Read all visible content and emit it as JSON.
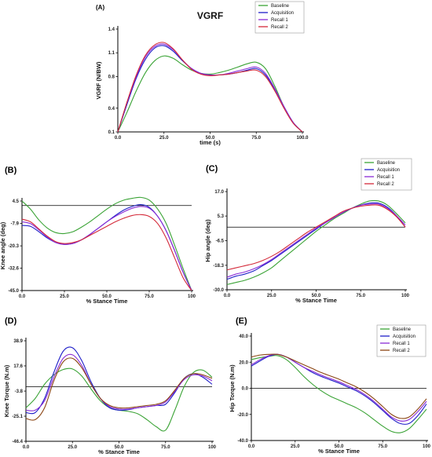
{
  "colors": {
    "baseline": "#3aa335",
    "acquisition": "#1e1ec8",
    "recall1": "#8a2bd6",
    "recall2": "#d42a3a",
    "recall2_alt": "#8b4513",
    "axis": "#000000",
    "zero_line": "#000000"
  },
  "chart_data": [
    {
      "id": "A",
      "panel_label": "(A)",
      "type": "line",
      "title": "VGRF",
      "xlabel": "time (s)",
      "ylabel": "VGRF (N/BW)",
      "xlim": [
        0,
        100
      ],
      "ylim": [
        0.1,
        1.4
      ],
      "xticks": [
        "0.0",
        "25.0",
        "50.0",
        "75.0",
        "100.0"
      ],
      "xtick_values": [
        0,
        25,
        50,
        75,
        100
      ],
      "yticks": [
        "0.1",
        "0.4",
        "0.8",
        "1.1",
        "1.4"
      ],
      "ytick_values": [
        0.1,
        0.4,
        0.8,
        1.1,
        1.4
      ],
      "legend": [
        "Baseline",
        "Acquisition",
        "Recall 1",
        "Recall 2"
      ],
      "legend_position": "top-right",
      "reference_line": null,
      "x": [
        0,
        5,
        10,
        15,
        20,
        25,
        30,
        35,
        40,
        45,
        50,
        55,
        60,
        65,
        70,
        75,
        80,
        85,
        90,
        95,
        100
      ],
      "series": [
        {
          "name": "Baseline",
          "color_key": "baseline",
          "values": [
            0.1,
            0.35,
            0.62,
            0.85,
            1.0,
            1.06,
            1.03,
            0.95,
            0.88,
            0.84,
            0.83,
            0.85,
            0.88,
            0.92,
            0.96,
            0.98,
            0.9,
            0.68,
            0.42,
            0.22,
            0.1
          ]
        },
        {
          "name": "Acquisition",
          "color_key": "acquisition",
          "values": [
            0.1,
            0.45,
            0.78,
            1.02,
            1.16,
            1.19,
            1.12,
            1.0,
            0.9,
            0.84,
            0.82,
            0.82,
            0.83,
            0.85,
            0.88,
            0.9,
            0.82,
            0.64,
            0.42,
            0.22,
            0.1
          ]
        },
        {
          "name": "Recall 1",
          "color_key": "recall1",
          "values": [
            0.1,
            0.47,
            0.8,
            1.05,
            1.18,
            1.21,
            1.14,
            1.01,
            0.9,
            0.84,
            0.82,
            0.82,
            0.84,
            0.87,
            0.9,
            0.92,
            0.84,
            0.65,
            0.42,
            0.22,
            0.1
          ]
        },
        {
          "name": "Recall 2",
          "color_key": "recall2",
          "values": [
            0.1,
            0.48,
            0.82,
            1.07,
            1.2,
            1.23,
            1.15,
            1.01,
            0.89,
            0.83,
            0.81,
            0.82,
            0.83,
            0.85,
            0.87,
            0.88,
            0.8,
            0.62,
            0.4,
            0.21,
            0.1
          ]
        }
      ]
    },
    {
      "id": "B",
      "panel_label": "(B)",
      "type": "line",
      "title": "",
      "xlabel": "% Stance Time",
      "ylabel": "Knee angle (deg)",
      "xlim": [
        0,
        100
      ],
      "ylim": [
        -45,
        4.5
      ],
      "xticks": [
        "0.0",
        "25.0",
        "50.0",
        "75.0",
        "100"
      ],
      "xtick_values": [
        0,
        25,
        50,
        75,
        100
      ],
      "yticks": [
        "-45.0",
        "-32.6",
        "-20.3",
        "-7.9",
        "4.5"
      ],
      "ytick_values": [
        -45,
        -32.6,
        -20.3,
        -7.9,
        4.5
      ],
      "legend": [],
      "legend_position": "none",
      "reference_line": 2,
      "x": [
        0,
        5,
        10,
        15,
        20,
        25,
        30,
        35,
        40,
        45,
        50,
        55,
        60,
        65,
        70,
        75,
        80,
        85,
        90,
        95,
        100
      ],
      "series": [
        {
          "name": "Baseline",
          "color_key": "baseline",
          "values": [
            4.5,
            0,
            -6,
            -10.5,
            -13,
            -13.5,
            -12.5,
            -10,
            -7,
            -3.5,
            0,
            3,
            5,
            6,
            6.5,
            5,
            0,
            -8,
            -20,
            -33,
            -45
          ]
        },
        {
          "name": "Acquisition",
          "color_key": "acquisition",
          "values": [
            -9,
            -9.5,
            -12.5,
            -16,
            -18.5,
            -19.5,
            -19,
            -17,
            -14,
            -10.5,
            -7,
            -3.5,
            -0.5,
            1.5,
            2.5,
            1,
            -4,
            -12,
            -23,
            -35,
            -45
          ]
        },
        {
          "name": "Recall 1",
          "color_key": "recall1",
          "values": [
            -7,
            -8,
            -11.5,
            -15.5,
            -18.5,
            -19.5,
            -19,
            -17,
            -14,
            -10.5,
            -7,
            -4,
            -1.5,
            0.5,
            1.5,
            0.5,
            -4,
            -12,
            -23,
            -35,
            -45
          ]
        },
        {
          "name": "Recall 2",
          "color_key": "recall2",
          "values": [
            -5.5,
            -7,
            -11,
            -15,
            -18,
            -19,
            -18.5,
            -17,
            -14.5,
            -12,
            -9.5,
            -7,
            -5,
            -3.5,
            -3,
            -4,
            -8,
            -16,
            -27,
            -38,
            -45
          ]
        }
      ]
    },
    {
      "id": "C",
      "panel_label": "(C)",
      "type": "line",
      "title": "",
      "xlabel": "% Stance Time",
      "ylabel": "Hip angle (deg)",
      "xlim": [
        0,
        100
      ],
      "ylim": [
        -30,
        17
      ],
      "xticks": [
        "0.0",
        "25.0",
        "50.0",
        "75.0",
        "100"
      ],
      "xtick_values": [
        0,
        25,
        50,
        75,
        100
      ],
      "yticks": [
        "-30.0",
        "-18.3",
        "-6.5",
        "5.3",
        "17.0"
      ],
      "ytick_values": [
        -30,
        -18.3,
        -6.5,
        5.3,
        17
      ],
      "legend": [
        "Baseline",
        "Acquisition",
        "Recall 1",
        "Recall 2"
      ],
      "legend_position": "top-right",
      "reference_line": 0,
      "x": [
        0,
        5,
        10,
        15,
        20,
        25,
        30,
        35,
        40,
        45,
        50,
        55,
        60,
        65,
        70,
        75,
        80,
        85,
        90,
        95,
        100
      ],
      "series": [
        {
          "name": "Baseline",
          "color_key": "baseline",
          "values": [
            -27.5,
            -26.5,
            -25.5,
            -24,
            -22,
            -19.5,
            -16,
            -12.5,
            -9,
            -5.5,
            -2,
            1,
            4,
            6.5,
            9,
            11,
            12.5,
            12.5,
            10.5,
            6.5,
            2
          ]
        },
        {
          "name": "Acquisition",
          "color_key": "acquisition",
          "values": [
            -25,
            -23.5,
            -22.5,
            -21,
            -18.5,
            -16,
            -13,
            -10,
            -7,
            -4,
            -1,
            2,
            4.5,
            7,
            9,
            10.5,
            11.5,
            11.5,
            9.5,
            5.5,
            0
          ]
        },
        {
          "name": "Recall 1",
          "color_key": "recall1",
          "values": [
            -24,
            -22.5,
            -21.5,
            -20,
            -18,
            -15.5,
            -12.5,
            -9.5,
            -6.5,
            -3.5,
            -0.5,
            2,
            4.5,
            7,
            9,
            10.5,
            11,
            11,
            9,
            5.5,
            1
          ]
        },
        {
          "name": "Recall 2",
          "color_key": "recall2",
          "values": [
            -20.5,
            -19.5,
            -18.5,
            -17.5,
            -16,
            -14,
            -11.5,
            -8.5,
            -5.5,
            -2.5,
            0,
            2.5,
            5,
            7.5,
            9,
            10,
            10.5,
            10.5,
            8.5,
            5,
            0
          ]
        }
      ]
    },
    {
      "id": "D",
      "panel_label": "(D)",
      "type": "line",
      "title": "",
      "xlabel": "% Stance Time",
      "ylabel": "Knee Torque (N.m)",
      "xlim": [
        0,
        100
      ],
      "ylim": [
        -46.4,
        38.9
      ],
      "xticks": [
        "0.0",
        "25.0",
        "50.0",
        "75.0",
        "100"
      ],
      "xtick_values": [
        0,
        25,
        50,
        75,
        100
      ],
      "yticks": [
        "-46.4",
        "-25.1",
        "-3.8",
        "17.6",
        "38.9"
      ],
      "ytick_values": [
        -46.4,
        -25.1,
        -3.8,
        17.6,
        38.9
      ],
      "legend": [],
      "legend_position": "none",
      "reference_line": 0,
      "x": [
        0,
        5,
        10,
        15,
        20,
        25,
        30,
        35,
        40,
        45,
        50,
        55,
        60,
        65,
        70,
        75,
        80,
        85,
        90,
        95,
        100
      ],
      "series": [
        {
          "name": "Baseline",
          "color_key": "baseline",
          "values": [
            -18,
            -10,
            2,
            10,
            14.5,
            15,
            9,
            -2,
            -12,
            -18,
            -20,
            -21,
            -23,
            -28,
            -34,
            -37,
            -20,
            0,
            12,
            14,
            8
          ]
        },
        {
          "name": "Acquisition",
          "color_key": "acquisition",
          "values": [
            -22,
            -22,
            -10,
            12,
            30,
            33,
            22,
            4,
            -10,
            -18,
            -20,
            -19.5,
            -18,
            -17,
            -16,
            -15,
            -5,
            7,
            11,
            8,
            2
          ]
        },
        {
          "name": "Recall 1",
          "color_key": "recall1",
          "values": [
            -20,
            -20,
            -12,
            8,
            24,
            27,
            18,
            2,
            -10,
            -17,
            -19,
            -19,
            -18,
            -17,
            -16,
            -13,
            -4,
            6,
            10,
            9,
            5
          ]
        },
        {
          "name": "Recall 2",
          "color_key": "recall2_alt",
          "values": [
            -27,
            -28,
            -18,
            5,
            21,
            24,
            16,
            2,
            -10,
            -16,
            -18,
            -18,
            -17,
            -16,
            -15,
            -12,
            -3,
            7,
            11,
            10,
            7
          ]
        }
      ]
    },
    {
      "id": "E",
      "panel_label": "(E)",
      "type": "line",
      "title": "",
      "xlabel": "% Stance Time",
      "ylabel": "Hip Torque (N.m)",
      "xlim": [
        0,
        100
      ],
      "ylim": [
        -40,
        40
      ],
      "xticks": [
        "0.0",
        "25.0",
        "50.0",
        "75.0",
        "100"
      ],
      "xtick_values": [
        0,
        25,
        50,
        75,
        100
      ],
      "yticks": [
        "-40.0",
        "-20.0",
        "0.0",
        "20.0",
        "40.0"
      ],
      "ytick_values": [
        -40,
        -20,
        0,
        20,
        40
      ],
      "legend": [
        "Baseline",
        "Acquisition",
        "Recall 1",
        "Recall 2"
      ],
      "legend_position": "top-right",
      "reference_line": 0,
      "x": [
        0,
        5,
        10,
        15,
        20,
        25,
        30,
        35,
        40,
        45,
        50,
        55,
        60,
        65,
        70,
        75,
        80,
        85,
        90,
        95,
        100
      ],
      "series": [
        {
          "name": "Baseline",
          "color_key": "baseline",
          "values": [
            22,
            23.5,
            24.5,
            25,
            22,
            16,
            9,
            3,
            -2,
            -6,
            -9,
            -12,
            -15,
            -19,
            -24,
            -29,
            -33,
            -34,
            -31,
            -24,
            -16
          ]
        },
        {
          "name": "Acquisition",
          "color_key": "acquisition",
          "values": [
            17,
            21,
            24.5,
            26,
            24,
            20,
            16,
            12,
            9,
            6.5,
            4,
            1,
            -2,
            -6,
            -11,
            -17,
            -23,
            -27,
            -27,
            -21,
            -12
          ]
        },
        {
          "name": "Recall 1",
          "color_key": "recall1",
          "values": [
            18,
            22,
            25,
            26,
            24,
            20,
            16,
            13,
            10,
            7.5,
            5,
            2,
            -1,
            -5,
            -10,
            -16,
            -22,
            -25,
            -24,
            -18,
            -10
          ]
        },
        {
          "name": "Recall 2",
          "color_key": "recall2_alt",
          "values": [
            24,
            25.5,
            26,
            26,
            24,
            21,
            18,
            15,
            12,
            9.5,
            7,
            4,
            1,
            -3,
            -8,
            -14,
            -20,
            -23,
            -22,
            -16,
            -8
          ]
        }
      ]
    }
  ]
}
